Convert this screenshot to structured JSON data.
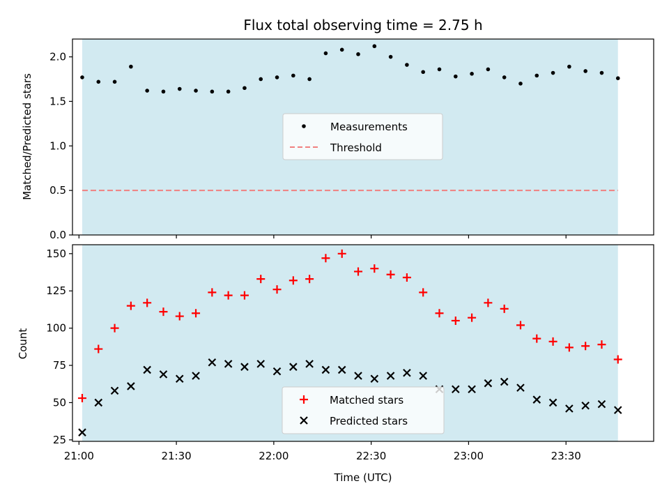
{
  "chart_data": {
    "title": "Flux total observing time = 2.75 h",
    "xlabel": "Time (UTC)",
    "x_ticks": [
      "21:00",
      "21:30",
      "22:00",
      "22:30",
      "23:00",
      "23:30"
    ],
    "x_range": [
      "20:58",
      "23:57"
    ],
    "shaded_interval": [
      "21:01",
      "23:46"
    ],
    "shade_color": "#add8e6",
    "times": [
      "21:01",
      "21:06",
      "21:11",
      "21:16",
      "21:21",
      "21:26",
      "21:31",
      "21:36",
      "21:41",
      "21:46",
      "21:51",
      "21:56",
      "22:01",
      "22:06",
      "22:11",
      "22:16",
      "22:21",
      "22:26",
      "22:31",
      "22:36",
      "22:41",
      "22:46",
      "22:51",
      "22:56",
      "23:01",
      "23:06",
      "23:11",
      "23:16",
      "23:21",
      "23:26",
      "23:31",
      "23:36",
      "23:41",
      "23:46"
    ],
    "top": {
      "type": "scatter",
      "ylabel": "Matched/Predicted stars",
      "ylim": [
        0,
        2.2
      ],
      "y_ticks": [
        "0.0",
        "0.5",
        "1.0",
        "1.5",
        "2.0"
      ],
      "measurements": [
        1.77,
        1.72,
        1.72,
        1.89,
        1.62,
        1.61,
        1.64,
        1.62,
        1.61,
        1.61,
        1.65,
        1.75,
        1.77,
        1.79,
        1.75,
        2.04,
        2.08,
        2.03,
        2.12,
        2.0,
        1.91,
        1.83,
        1.86,
        1.78,
        1.81,
        1.86,
        1.77,
        1.7,
        1.79,
        1.82,
        1.89,
        1.84,
        1.82,
        1.76
      ],
      "threshold": 0.5,
      "legend": [
        "Measurements",
        "Threshold"
      ],
      "legend_position": "center",
      "colors": {
        "measurements": "#000000",
        "threshold": "#f08080"
      }
    },
    "bottom": {
      "type": "scatter",
      "ylabel": "Count",
      "ylim": [
        24,
        156
      ],
      "y_ticks": [
        "25",
        "50",
        "75",
        "100",
        "125",
        "150"
      ],
      "matched": [
        53,
        86,
        100,
        115,
        117,
        111,
        108,
        110,
        124,
        122,
        122,
        133,
        126,
        132,
        133,
        147,
        150,
        138,
        140,
        136,
        134,
        124,
        110,
        105,
        107,
        117,
        113,
        102,
        93,
        91,
        87,
        88,
        89,
        79
      ],
      "predicted": [
        30,
        50,
        58,
        61,
        72,
        69,
        66,
        68,
        77,
        76,
        74,
        76,
        71,
        74,
        76,
        72,
        72,
        68,
        66,
        68,
        70,
        68,
        59,
        59,
        59,
        63,
        64,
        60,
        52,
        50,
        46,
        48,
        49,
        45
      ],
      "legend": [
        "Matched stars",
        "Predicted stars"
      ],
      "legend_position": "lower center",
      "colors": {
        "matched": "#ff0000",
        "predicted": "#000000"
      }
    }
  }
}
